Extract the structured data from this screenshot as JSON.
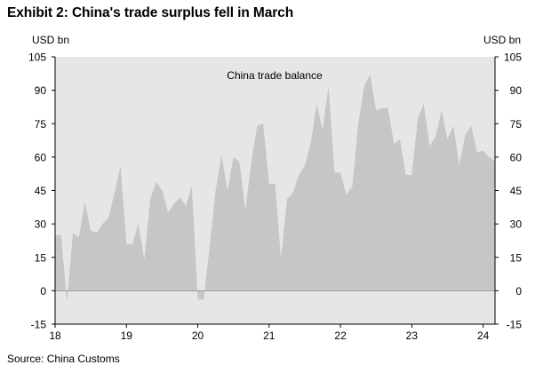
{
  "title": "Exhibit 2: China's trade surplus fell in March",
  "unit_left": "USD bn",
  "unit_right": "USD bn",
  "source": "Source: China Customs",
  "colors": {
    "plot_background": "#e6e6e6",
    "area_fill": "#c6c6c6"
  },
  "chart_data": {
    "type": "area",
    "title": "Exhibit 2: China's trade surplus fell in March",
    "ylabel": "USD bn",
    "ylabel_right": "USD bn",
    "ylim": [
      -15,
      105
    ],
    "yticks": [
      -15,
      0,
      15,
      30,
      45,
      60,
      75,
      90,
      105
    ],
    "xlim": [
      "2018-01",
      "2024-03"
    ],
    "xticks": [
      {
        "x": "2018-01",
        "label": "18"
      },
      {
        "x": "2019-01",
        "label": "19"
      },
      {
        "x": "2020-01",
        "label": "20"
      },
      {
        "x": "2021-01",
        "label": "21"
      },
      {
        "x": "2022-01",
        "label": "22"
      },
      {
        "x": "2023-01",
        "label": "23"
      },
      {
        "x": "2024-01",
        "label": "24"
      }
    ],
    "grid": false,
    "legend": "top-center",
    "annotations": [
      "China trade balance"
    ],
    "series": [
      {
        "name": "China trade balance",
        "x": [
          "2018-01",
          "2018-02",
          "2018-03",
          "2018-04",
          "2018-05",
          "2018-06",
          "2018-07",
          "2018-08",
          "2018-09",
          "2018-10",
          "2018-11",
          "2018-12",
          "2019-01",
          "2019-02",
          "2019-03",
          "2019-04",
          "2019-05",
          "2019-06",
          "2019-07",
          "2019-08",
          "2019-09",
          "2019-10",
          "2019-11",
          "2019-12",
          "2020-01",
          "2020-02",
          "2020-03",
          "2020-04",
          "2020-05",
          "2020-06",
          "2020-07",
          "2020-08",
          "2020-09",
          "2020-10",
          "2020-11",
          "2020-12",
          "2021-01",
          "2021-02",
          "2021-03",
          "2021-04",
          "2021-05",
          "2021-06",
          "2021-07",
          "2021-08",
          "2021-09",
          "2021-10",
          "2021-11",
          "2021-12",
          "2022-01",
          "2022-02",
          "2022-03",
          "2022-04",
          "2022-05",
          "2022-06",
          "2022-07",
          "2022-08",
          "2022-09",
          "2022-10",
          "2022-11",
          "2022-12",
          "2023-01",
          "2023-02",
          "2023-03",
          "2023-04",
          "2023-05",
          "2023-06",
          "2023-07",
          "2023-08",
          "2023-09",
          "2023-10",
          "2023-11",
          "2023-12",
          "2024-01",
          "2024-02",
          "2024-03"
        ],
        "values": [
          25,
          25,
          -5,
          26,
          24,
          40,
          27,
          26,
          30,
          33,
          44,
          56,
          21,
          21,
          30,
          14,
          41,
          49,
          45,
          35,
          39,
          42,
          38,
          47,
          -4,
          -4,
          20,
          45,
          61,
          45,
          60,
          58,
          36,
          58,
          74,
          75,
          48,
          48,
          14,
          41,
          44,
          52,
          56,
          66,
          84,
          72,
          92,
          53,
          53,
          43,
          47,
          75,
          92,
          97,
          81,
          82,
          82,
          66,
          68,
          52,
          52,
          77,
          84,
          65,
          69,
          81,
          68,
          74,
          56,
          70,
          74,
          62,
          63,
          60,
          58
        ]
      }
    ]
  }
}
